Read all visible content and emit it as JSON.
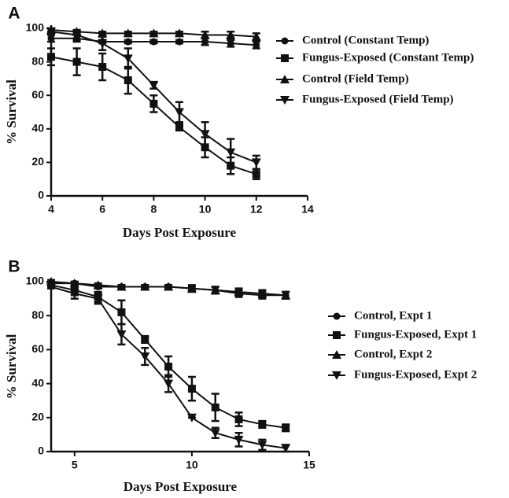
{
  "chart_data": [
    {
      "type": "line",
      "panel_label": "A",
      "xlabel": "Days Post Exposure",
      "ylabel": "% Survival",
      "x": [
        4,
        5,
        6,
        7,
        8,
        9,
        10,
        11,
        12
      ],
      "xlim": [
        4,
        14
      ],
      "xticks": [
        4,
        6,
        8,
        10,
        12,
        14
      ],
      "ylim": [
        0,
        100
      ],
      "yticks": [
        0,
        20,
        40,
        60,
        80,
        100
      ],
      "series": [
        {
          "name": "Control (Constant Temp)",
          "color": "#111111",
          "marker": "circle",
          "values": [
            94,
            94,
            92,
            92,
            92,
            92,
            92,
            91,
            90
          ],
          "errors": [
            2,
            2,
            1,
            1,
            1,
            1,
            2,
            2,
            2
          ]
        },
        {
          "name": "Fungus-Exposed (Constant Temp)",
          "color": "#111111",
          "marker": "square",
          "values": [
            83,
            80,
            77,
            69,
            55,
            41,
            29,
            18,
            13
          ],
          "errors": [
            5,
            8,
            8,
            8,
            5,
            2,
            6,
            5,
            3
          ]
        },
        {
          "name": "Control (Field Temp)",
          "color": "#111111",
          "marker": "triangle-up",
          "values": [
            99,
            98,
            97,
            97,
            97,
            97,
            96,
            96,
            95
          ],
          "errors": [
            1,
            1,
            1,
            1,
            1,
            1,
            2,
            2,
            2
          ]
        },
        {
          "name": "Fungus-Exposed (Field Temp)",
          "color": "#111111",
          "marker": "triangle-down",
          "values": [
            98,
            96,
            91,
            82,
            66,
            50,
            37,
            26,
            20
          ],
          "errors": [
            2,
            3,
            4,
            6,
            2,
            6,
            7,
            8,
            4
          ]
        }
      ]
    },
    {
      "type": "line",
      "panel_label": "B",
      "xlabel": "Days Post Exposure",
      "ylabel": "% Survival",
      "x": [
        4,
        5,
        6,
        7,
        8,
        9,
        10,
        11,
        12,
        13,
        14
      ],
      "xlim": [
        4,
        15
      ],
      "xticks": [
        5,
        10,
        15
      ],
      "ylim": [
        0,
        100
      ],
      "yticks": [
        0,
        20,
        40,
        60,
        80,
        100
      ],
      "series": [
        {
          "name": "Control, Expt 1",
          "color": "#111111",
          "marker": "circle",
          "values": [
            99,
            99,
            97,
            97,
            97,
            97,
            96,
            95,
            93,
            92,
            92
          ],
          "errors": [
            1,
            1,
            1,
            1,
            1,
            1,
            2,
            2,
            2,
            2,
            2
          ]
        },
        {
          "name": "Fungus-Exposed, Expt 1",
          "color": "#111111",
          "marker": "square",
          "values": [
            98,
            95,
            91,
            82,
            66,
            50,
            37,
            26,
            19,
            16,
            14
          ],
          "errors": [
            1,
            3,
            3,
            7,
            2,
            6,
            7,
            8,
            4,
            2,
            2
          ]
        },
        {
          "name": "Control, Expt 2",
          "color": "#111111",
          "marker": "triangle-up",
          "values": [
            100,
            99,
            98,
            97,
            97,
            97,
            96,
            95,
            94,
            93,
            92
          ],
          "errors": [
            1,
            1,
            1,
            1,
            1,
            1,
            1,
            2,
            2,
            2,
            2
          ]
        },
        {
          "name": "Fungus-Exposed, Expt 2",
          "color": "#111111",
          "marker": "triangle-down",
          "values": [
            97,
            93,
            90,
            69,
            56,
            40,
            20,
            11,
            7,
            4,
            2
          ],
          "errors": [
            1,
            3,
            3,
            6,
            5,
            5,
            0,
            3,
            4,
            3,
            2
          ]
        }
      ]
    }
  ]
}
